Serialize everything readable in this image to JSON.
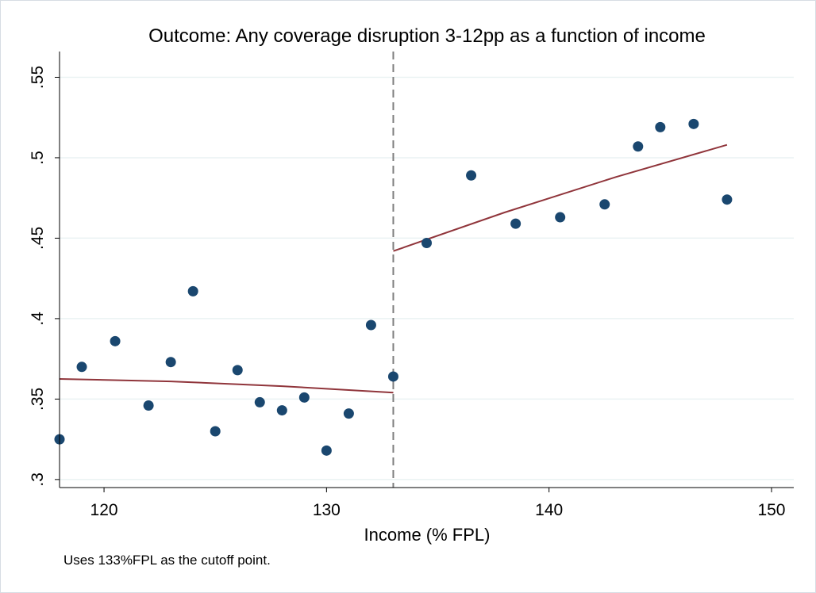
{
  "chart_data": {
    "type": "scatter",
    "title": "Outcome: Any coverage disruption 3-12pp as a function of income",
    "xlabel": "Income (% FPL)",
    "ylabel": "",
    "note": "Uses 133%FPL as the cutoff point.",
    "xlim": [
      118,
      151
    ],
    "ylim": [
      0.295,
      0.566
    ],
    "x_ticks": [
      120,
      130,
      140,
      150
    ],
    "x_tick_labels": [
      "120",
      "130",
      "140",
      "150"
    ],
    "y_ticks": [
      0.3,
      0.35,
      0.4,
      0.45,
      0.5,
      0.55
    ],
    "y_tick_labels": [
      ".3",
      ".35",
      ".4",
      ".45",
      ".5",
      ".55"
    ],
    "grid": "horizontal",
    "cutoff": 133,
    "colors": {
      "points": "#1a476f",
      "fit": "#90353b",
      "grid": "#eaf2f3",
      "cutoff": "#7f7f7f"
    },
    "series": [
      {
        "type": "scatter",
        "x": [
          118,
          119,
          120.5,
          122,
          123,
          124,
          125,
          126,
          127,
          128,
          129,
          130,
          131,
          132,
          133,
          134.5,
          136.5,
          138.5,
          140.5,
          142.5,
          144,
          145,
          146.5,
          148
        ],
        "y": [
          0.325,
          0.37,
          0.386,
          0.346,
          0.373,
          0.417,
          0.33,
          0.368,
          0.348,
          0.343,
          0.351,
          0.318,
          0.341,
          0.396,
          0.364,
          0.447,
          0.489,
          0.459,
          0.463,
          0.471,
          0.507,
          0.519,
          0.521,
          0.474
        ]
      },
      {
        "type": "line",
        "x": [
          118,
          123,
          128,
          133
        ],
        "y": [
          0.3625,
          0.361,
          0.358,
          0.354
        ]
      },
      {
        "type": "line",
        "x": [
          133,
          138,
          143,
          148
        ],
        "y": [
          0.442,
          0.466,
          0.488,
          0.508
        ]
      }
    ]
  }
}
